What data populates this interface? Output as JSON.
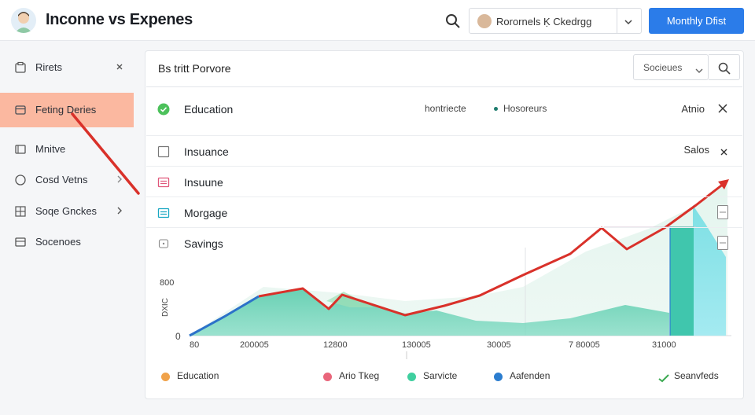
{
  "header": {
    "title": "Inconne vs Expenes",
    "user_name": "Rorornels Ḳ Ckedrgg",
    "primary_button": "Monthly Dfist"
  },
  "sidebar": {
    "items": [
      {
        "label": "Rirets",
        "icon": "clipboard-icon",
        "tail": "close-icon"
      },
      {
        "label": "Feting Deries",
        "icon": "wallet-icon",
        "tail": "",
        "active": true
      },
      {
        "label": "Mnitve",
        "icon": "folder-icon",
        "tail": ""
      },
      {
        "label": "Cosd Vetns",
        "icon": "circle-icon",
        "tail": "chevron-right-icon"
      },
      {
        "label": "Soqe Gnckes",
        "icon": "grid-icon",
        "tail": "chevron-right-icon"
      },
      {
        "label": "Socenoes",
        "icon": "list-icon",
        "tail": ""
      }
    ]
  },
  "card": {
    "title": "Bs tritt Porvore",
    "select_value": "Socieues",
    "rows": [
      {
        "label": "Education",
        "icon": "check-circle-icon",
        "meta1": "hontriecte",
        "meta2": "Hosoreurs",
        "right_text": "Atnio"
      },
      {
        "label": "Insuance",
        "icon": "checkbox-icon",
        "right_text": "Salos"
      },
      {
        "label": "Insuune",
        "icon": "pink-card-icon"
      },
      {
        "label": "Morgage",
        "icon": "teal-card-icon"
      },
      {
        "label": "Savings",
        "icon": "box-icon"
      }
    ]
  },
  "chart_data": {
    "type": "area",
    "y_tick_labels": [
      "0",
      "800"
    ],
    "ylabel": "DXIC",
    "x_tick_labels": [
      "80",
      "200005",
      "12800",
      "130005",
      "30005",
      "7 80005",
      "31000"
    ],
    "series": [
      {
        "name": "Education",
        "color": "#f0a24a"
      },
      {
        "name": "Ario Tkeg",
        "color": "#e9667b"
      },
      {
        "name": "Sarvicte",
        "color": "#3fcf9f"
      },
      {
        "name": "Aafenden",
        "color": "#2b7dcf"
      },
      {
        "name": "Seanvfeds",
        "color": "#3caa52"
      }
    ]
  },
  "colors": {
    "accent": "#2b7ce9",
    "active_sidebar": "#fbb8a0",
    "trend_line": "#d9312a",
    "area_teal": "#3fcaa5"
  }
}
